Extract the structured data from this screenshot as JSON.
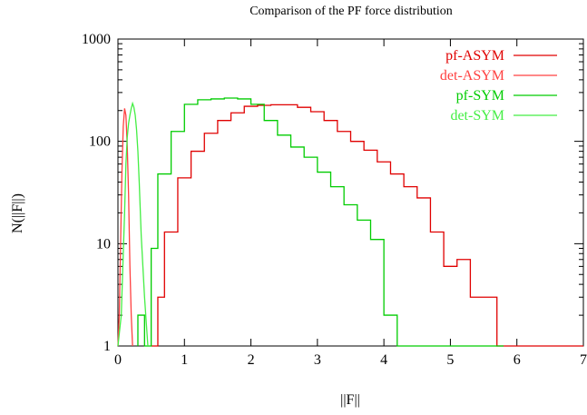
{
  "chart_data": {
    "type": "line",
    "title": "Comparison of the PF force distribution",
    "xlabel": "||F||",
    "ylabel": "N(||F||)",
    "xlim": [
      0,
      7
    ],
    "ylim": [
      1,
      1000
    ],
    "yscale": "log",
    "grid": false,
    "legend_position": "top-right",
    "x_ticks": [
      0,
      1,
      2,
      3,
      4,
      5,
      6,
      7
    ],
    "x_tick_labels": [
      "0",
      "1",
      "2",
      "3",
      "4",
      "5",
      "6",
      "7"
    ],
    "y_ticks": [
      1,
      10,
      100,
      1000
    ],
    "y_tick_labels": [
      "1",
      "10",
      "100",
      "1000"
    ],
    "series": [
      {
        "name": "pf-ASYM",
        "color": "#e00000",
        "style": "steps",
        "x": [
          0.5,
          0.6,
          0.8,
          1.0,
          1.2,
          1.4,
          1.6,
          1.8,
          2.0,
          2.2,
          2.4,
          2.6,
          2.8,
          3.0,
          3.2,
          3.4,
          3.6,
          3.8,
          4.0,
          4.2,
          4.4,
          4.6,
          4.8,
          5.0,
          5.2,
          5.4,
          5.6,
          5.8,
          6.0,
          6.2,
          6.4,
          6.6,
          6.8,
          7.0
        ],
        "y": [
          1,
          3,
          13,
          44,
          80,
          120,
          160,
          190,
          220,
          225,
          228,
          228,
          215,
          195,
          160,
          125,
          100,
          82,
          63,
          48,
          36,
          28,
          13,
          6,
          7,
          3,
          3,
          1,
          1,
          1,
          1,
          1,
          1,
          1
        ]
      },
      {
        "name": "det-ASYM",
        "color": "#ff4040",
        "style": "line",
        "x": [
          0.0,
          0.02,
          0.04,
          0.06,
          0.08,
          0.1,
          0.12,
          0.14,
          0.16,
          0.18,
          0.2,
          0.22
        ],
        "y": [
          1,
          2,
          10,
          50,
          140,
          210,
          180,
          90,
          30,
          6,
          2,
          1
        ]
      },
      {
        "name": "pf-SYM",
        "color": "#00cc00",
        "style": "steps",
        "x": [
          0.3,
          0.4,
          0.5,
          0.7,
          0.9,
          1.1,
          1.3,
          1.5,
          1.7,
          1.9,
          2.1,
          2.3,
          2.5,
          2.7,
          2.9,
          3.1,
          3.3,
          3.5,
          3.7,
          3.9,
          4.1,
          4.3,
          4.5,
          4.7,
          4.9,
          5.1,
          5.3,
          5.5,
          5.7
        ],
        "y": [
          2,
          1,
          9,
          48,
          125,
          230,
          255,
          260,
          265,
          260,
          230,
          160,
          115,
          88,
          70,
          50,
          36,
          24,
          17,
          11,
          2,
          1,
          1,
          1,
          1,
          1,
          1,
          1,
          1
        ]
      },
      {
        "name": "det-SYM",
        "color": "#44ee44",
        "style": "line",
        "x": [
          0.0,
          0.05,
          0.1,
          0.12,
          0.14,
          0.16,
          0.18,
          0.2,
          0.22,
          0.24,
          0.26,
          0.28,
          0.3,
          0.32,
          0.35,
          0.4,
          0.45
        ],
        "y": [
          1,
          2,
          20,
          60,
          110,
          150,
          180,
          210,
          235,
          215,
          180,
          130,
          80,
          40,
          12,
          3,
          1
        ]
      }
    ]
  }
}
